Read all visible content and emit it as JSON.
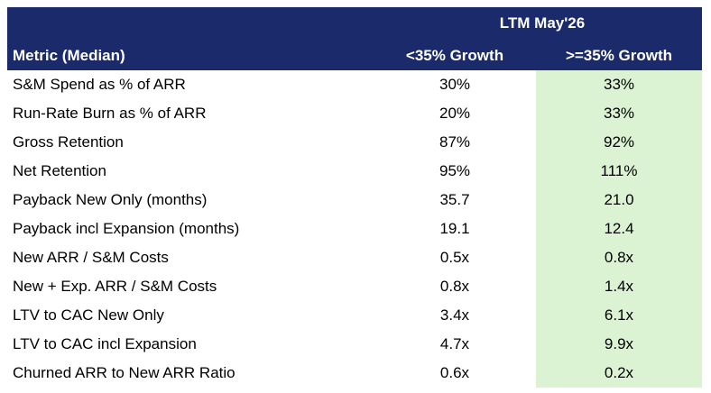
{
  "header": {
    "group": "LTM May'26",
    "columns": [
      "Metric (Median)",
      "<35% Growth",
      ">=35% Growth"
    ]
  },
  "table": {
    "rows": [
      [
        "S&M Spend as % of ARR",
        "30%",
        "33%"
      ],
      [
        "Run-Rate Burn as % of ARR",
        "20%",
        "33%"
      ],
      [
        "Gross Retention",
        "87%",
        "92%"
      ],
      [
        "Net Retention",
        "95%",
        "111%"
      ],
      [
        "Payback New Only (months)",
        "35.7",
        "21.0"
      ],
      [
        "Payback incl Expansion (months)",
        "19.1",
        "12.4"
      ],
      [
        "New ARR / S&M Costs",
        "0.5x",
        "0.8x"
      ],
      [
        "New + Exp. ARR / S&M Costs",
        "0.8x",
        "1.4x"
      ],
      [
        "LTV to CAC New Only",
        "3.4x",
        "6.1x"
      ],
      [
        "LTV to CAC incl Expansion",
        "4.7x",
        "9.9x"
      ],
      [
        "Churned ARR to New ARR Ratio",
        "0.6x",
        "0.2x"
      ]
    ]
  }
}
